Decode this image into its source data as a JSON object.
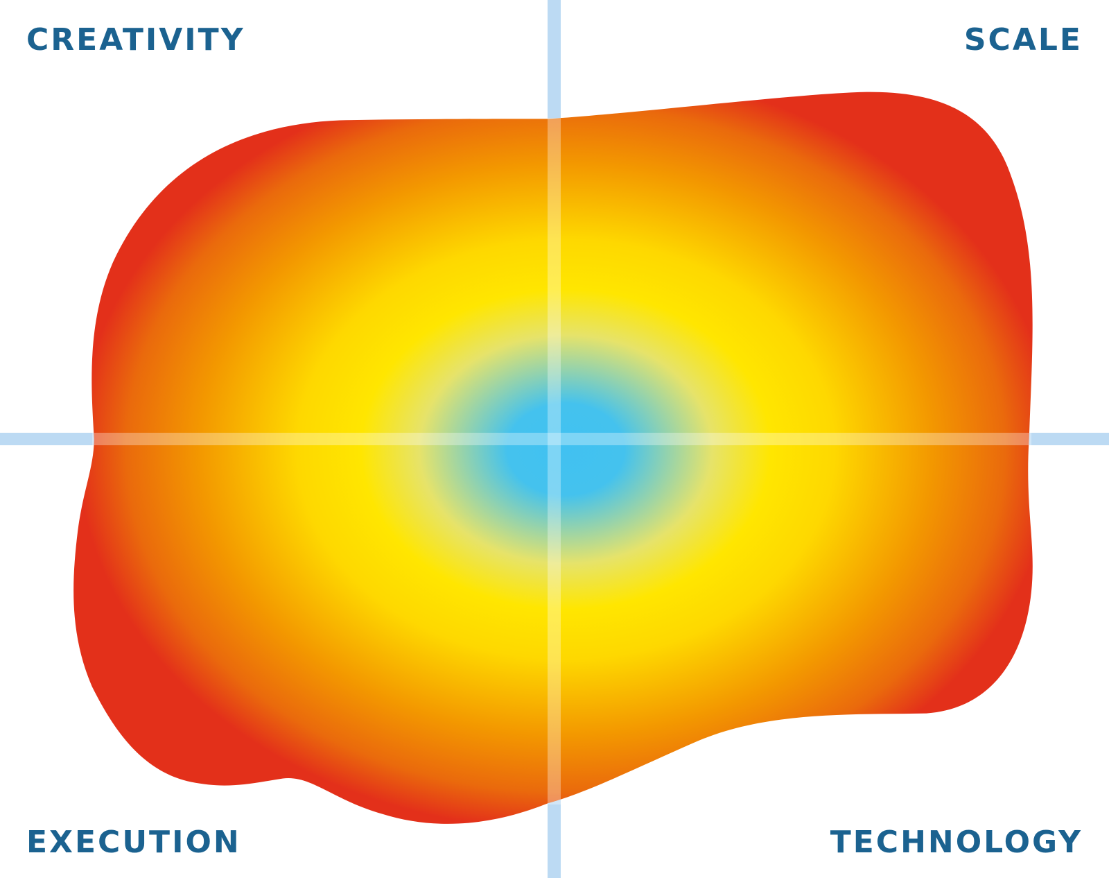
{
  "quadrants": {
    "top_left": "CREATIVITY",
    "top_right": "SCALE",
    "bottom_left": "EXECUTION",
    "bottom_right": "TECHNOLOGY"
  }
}
